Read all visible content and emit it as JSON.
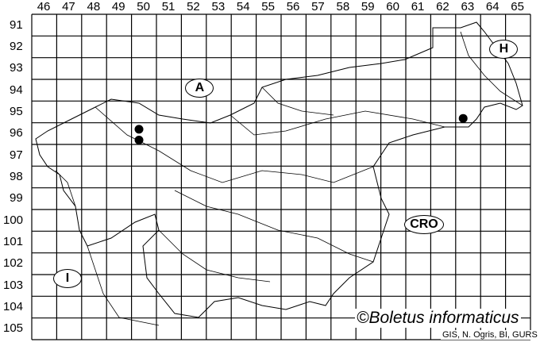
{
  "map": {
    "columns": [
      "46",
      "47",
      "48",
      "49",
      "50",
      "51",
      "52",
      "53",
      "54",
      "55",
      "56",
      "57",
      "58",
      "59",
      "60",
      "61",
      "62",
      "63",
      "64",
      "65"
    ],
    "rows": [
      "91",
      "92",
      "93",
      "94",
      "95",
      "96",
      "97",
      "98",
      "99",
      "100",
      "101",
      "102",
      "103",
      "104",
      "105"
    ],
    "countries": [
      {
        "code": "A",
        "col": 52.7,
        "row": 94.4
      },
      {
        "code": "H",
        "col": 64.9,
        "row": 92.6
      },
      {
        "code": "CRO",
        "col": 61.7,
        "row": 100.7
      },
      {
        "code": "I",
        "col": 47.4,
        "row": 103.2
      }
    ],
    "records": [
      {
        "col": 50.3,
        "row": 96.3
      },
      {
        "col": 50.3,
        "row": 96.8
      },
      {
        "col": 63.3,
        "row": 95.8
      }
    ],
    "colors": {
      "grid": "#000000",
      "border": "#000000",
      "record": "#000000"
    }
  },
  "credit": "©Boletus informaticus",
  "source": "GIS, N. Ogris, BI, GURS"
}
